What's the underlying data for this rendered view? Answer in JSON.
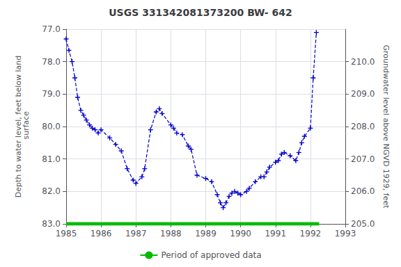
{
  "chart_data": {
    "type": "line",
    "title": "USGS 331342081373200 BW- 642",
    "ylabel": "Depth to water level, feet below land\n surface",
    "y2label": "Groundwater level above NGVD 1929, feet",
    "xlim": [
      1985.0,
      1993.0
    ],
    "xticks": [
      1985,
      1986,
      1987,
      1988,
      1989,
      1990,
      1991,
      1992,
      1993
    ],
    "ylim": [
      83.0,
      77.0
    ],
    "yticks": [
      {
        "value": 77.0,
        "label": "77.0"
      },
      {
        "value": 78.0,
        "label": "78.0"
      },
      {
        "value": 79.0,
        "label": "79.0"
      },
      {
        "value": 80.0,
        "label": "80.0"
      },
      {
        "value": 81.0,
        "label": "81.0"
      },
      {
        "value": 82.0,
        "label": "82.0"
      },
      {
        "value": 83.0,
        "label": "83.0"
      }
    ],
    "y2lim": [
      205.0,
      211.0
    ],
    "y2ticks": [
      {
        "value": 205.0,
        "label": "205.0"
      },
      {
        "value": 206.0,
        "label": "206.0"
      },
      {
        "value": 207.0,
        "label": "207.0"
      },
      {
        "value": 208.0,
        "label": "208.0"
      },
      {
        "value": 209.0,
        "label": "209.0"
      },
      {
        "value": 210.0,
        "label": "210.0"
      }
    ],
    "grid": true,
    "legend": "bottom",
    "series": [
      {
        "color": "#0000CC",
        "line_style": "dashed",
        "marker": "plus",
        "x": [
          1985.0,
          1985.08,
          1985.17,
          1985.25,
          1985.33,
          1985.42,
          1985.5,
          1985.58,
          1985.67,
          1985.75,
          1985.83,
          1985.92,
          1986.0,
          1986.25,
          1986.42,
          1986.58,
          1986.75,
          1986.92,
          1987.0,
          1987.17,
          1987.25,
          1987.42,
          1987.58,
          1987.67,
          1987.75,
          1988.0,
          1988.08,
          1988.17,
          1988.33,
          1988.5,
          1988.58,
          1988.75,
          1989.0,
          1989.17,
          1989.33,
          1989.42,
          1989.5,
          1989.58,
          1989.67,
          1989.75,
          1989.83,
          1989.92,
          1990.0,
          1990.17,
          1990.25,
          1990.42,
          1990.58,
          1990.67,
          1990.75,
          1990.83,
          1991.0,
          1991.08,
          1991.17,
          1991.25,
          1991.42,
          1991.58,
          1991.67,
          1991.75,
          1991.83,
          1992.0,
          1992.08,
          1992.17
        ],
        "values": [
          77.3,
          77.65,
          78.0,
          78.5,
          79.1,
          79.5,
          79.65,
          79.8,
          79.95,
          80.05,
          80.1,
          80.2,
          80.1,
          80.35,
          80.55,
          80.75,
          81.3,
          81.65,
          81.75,
          81.55,
          81.3,
          80.1,
          79.55,
          79.45,
          79.6,
          79.95,
          80.05,
          80.2,
          80.25,
          80.6,
          80.7,
          81.5,
          81.6,
          81.7,
          82.1,
          82.35,
          82.5,
          82.35,
          82.15,
          82.05,
          82.0,
          82.05,
          82.1,
          82.0,
          81.9,
          81.7,
          81.55,
          81.55,
          81.4,
          81.25,
          81.1,
          81.05,
          80.85,
          80.8,
          80.9,
          81.05,
          80.8,
          80.5,
          80.3,
          80.05,
          78.5,
          77.1
        ]
      },
      {
        "name": "Period of approved data",
        "color": "#00BB00",
        "line_style": "solid",
        "marker": "none",
        "x": [
          1985.0,
          1992.25
        ],
        "values": [
          83.0,
          83.0
        ]
      }
    ]
  }
}
